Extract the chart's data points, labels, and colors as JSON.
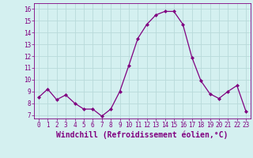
{
  "x": [
    0,
    1,
    2,
    3,
    4,
    5,
    6,
    7,
    8,
    9,
    10,
    11,
    12,
    13,
    14,
    15,
    16,
    17,
    18,
    19,
    20,
    21,
    22,
    23
  ],
  "y": [
    8.5,
    9.2,
    8.3,
    8.7,
    8.0,
    7.5,
    7.5,
    6.9,
    7.5,
    9.0,
    11.2,
    13.5,
    14.7,
    15.5,
    15.8,
    15.8,
    14.7,
    11.9,
    9.9,
    8.8,
    8.4,
    9.0,
    9.5,
    7.3
  ],
  "line_color": "#800080",
  "marker": "D",
  "marker_size": 2,
  "bg_color": "#d4f0f0",
  "grid_color": "#b8dada",
  "xlabel": "Windchill (Refroidissement éolien,°C)",
  "xlabel_fontsize": 7,
  "xtick_labels": [
    "0",
    "1",
    "2",
    "3",
    "4",
    "5",
    "6",
    "7",
    "8",
    "9",
    "10",
    "11",
    "12",
    "13",
    "14",
    "15",
    "16",
    "17",
    "18",
    "19",
    "20",
    "21",
    "22",
    "23"
  ],
  "ytick_labels": [
    "7",
    "8",
    "9",
    "10",
    "11",
    "12",
    "13",
    "14",
    "15",
    "16"
  ],
  "ylim": [
    6.7,
    16.5
  ],
  "xlim": [
    -0.5,
    23.5
  ]
}
